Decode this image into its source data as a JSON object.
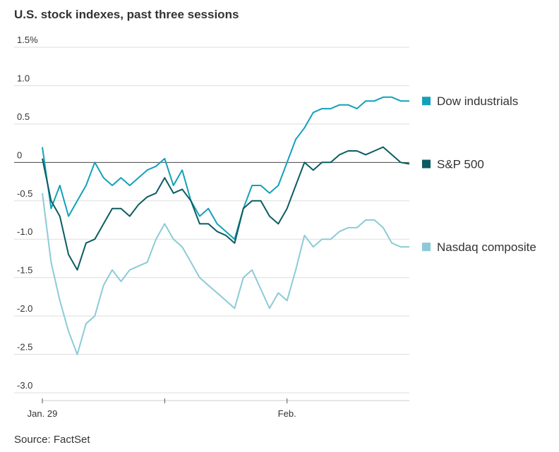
{
  "chart_data": {
    "type": "line",
    "title": "U.S. stock indexes, past three sessions",
    "source": "Source: FactSet",
    "x": [
      0,
      1,
      2,
      3,
      4,
      5,
      6,
      7,
      8,
      9,
      10,
      11,
      12,
      13,
      14,
      15,
      16,
      17,
      18,
      19,
      20,
      21,
      22,
      23,
      24,
      25,
      26,
      27,
      28,
      29,
      30,
      31,
      32,
      33,
      34,
      35,
      36,
      37,
      38,
      39,
      40,
      41,
      42
    ],
    "xlim": [
      0,
      42
    ],
    "xticks": [
      {
        "value": 0,
        "label": "Jan. 29"
      },
      {
        "value": 14,
        "label": null
      },
      {
        "value": 28,
        "label": "Feb."
      }
    ],
    "ylim": [
      -3,
      1.5
    ],
    "yticks": [
      {
        "value": -3,
        "label": "-3.0"
      },
      -2.5,
      {
        "value": -2,
        "label": "-2.0"
      },
      -1.5,
      {
        "value": -1,
        "label": "-1.0"
      },
      -0.5,
      0,
      0.5,
      {
        "value": 1,
        "label": "1.0"
      },
      {
        "value": 1.5,
        "label": "1.5%"
      }
    ],
    "grid": true,
    "series": [
      {
        "name": "Dow industrials",
        "color": "#12a1b8",
        "values": [
          0.2,
          -0.6,
          -0.3,
          -0.7,
          -0.5,
          -0.3,
          0.0,
          -0.2,
          -0.3,
          -0.2,
          -0.3,
          -0.2,
          -0.1,
          -0.05,
          0.05,
          -0.3,
          -0.1,
          -0.5,
          -0.7,
          -0.6,
          -0.8,
          -0.9,
          -1.0,
          -0.6,
          -0.3,
          -0.3,
          -0.4,
          -0.3,
          0.0,
          0.3,
          0.45,
          0.65,
          0.7,
          0.7,
          0.75,
          0.75,
          0.7,
          0.8,
          0.8,
          0.85,
          0.85,
          0.8,
          0.8
        ]
      },
      {
        "name": "S&P 500",
        "color": "#0b5c63",
        "values": [
          0.05,
          -0.5,
          -0.7,
          -1.2,
          -1.4,
          -1.05,
          -1.0,
          -0.8,
          -0.6,
          -0.6,
          -0.7,
          -0.55,
          -0.45,
          -0.4,
          -0.2,
          -0.4,
          -0.35,
          -0.5,
          -0.8,
          -0.8,
          -0.9,
          -0.95,
          -1.05,
          -0.6,
          -0.5,
          -0.5,
          -0.7,
          -0.8,
          -0.6,
          -0.3,
          0.0,
          -0.1,
          0.0,
          0.0,
          0.1,
          0.15,
          0.15,
          0.1,
          0.15,
          0.2,
          0.1,
          0.0,
          -0.02
        ]
      },
      {
        "name": "Nasdaq composite",
        "color": "#8ccbd6",
        "values": [
          -0.4,
          -1.3,
          -1.8,
          -2.2,
          -2.5,
          -2.1,
          -2.0,
          -1.6,
          -1.4,
          -1.55,
          -1.4,
          -1.35,
          -1.3,
          -1.0,
          -0.8,
          -1.0,
          -1.1,
          -1.3,
          -1.5,
          -1.6,
          -1.7,
          -1.8,
          -1.9,
          -1.5,
          -1.4,
          -1.65,
          -1.9,
          -1.7,
          -1.8,
          -1.4,
          -0.95,
          -1.1,
          -1.0,
          -1.0,
          -0.9,
          -0.85,
          -0.85,
          -0.75,
          -0.75,
          -0.85,
          -1.05,
          -1.1,
          -1.1
        ]
      }
    ]
  }
}
